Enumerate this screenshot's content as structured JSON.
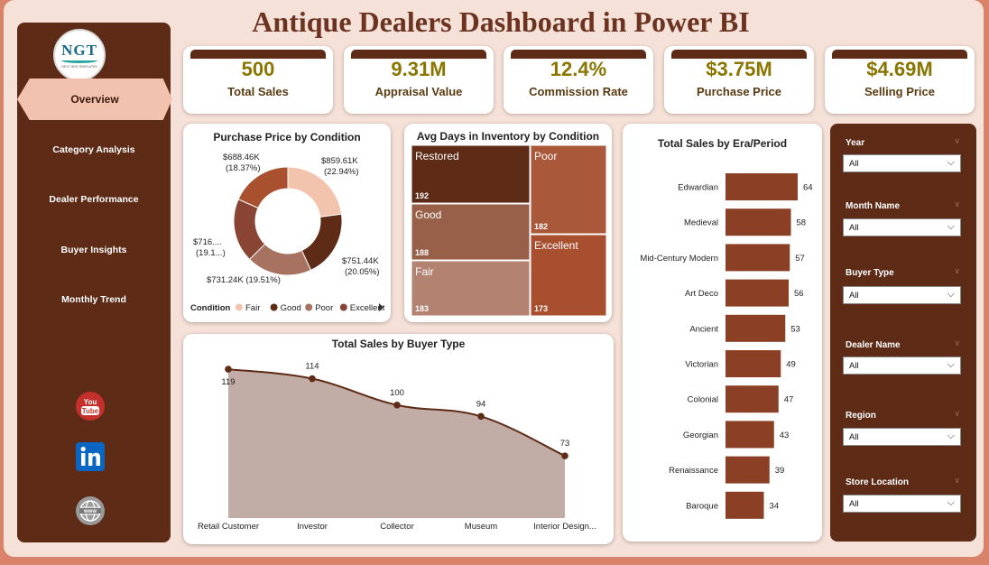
{
  "header": {
    "title": "Antique Dealers Dashboard in Power BI"
  },
  "logo": {
    "text": "NGT",
    "subtext": "NEXT GEN TEMPLATES"
  },
  "sidebar": {
    "active": "Overview",
    "items": [
      "Category Analysis",
      "Dealer Performance",
      "Buyer Insights",
      "Monthly Trend"
    ],
    "social": [
      {
        "name": "youtube-icon",
        "label": "You Tube",
        "color": "#c4302b"
      },
      {
        "name": "linkedin-icon",
        "label": "in",
        "color": "#0a66c2"
      },
      {
        "name": "web-icon",
        "label": "www",
        "color": "#8a8a8a"
      }
    ]
  },
  "kpis": [
    {
      "value": "500",
      "label": "Total Sales"
    },
    {
      "value": "9.31M",
      "label": "Appraisal Value"
    },
    {
      "value": "12.4%",
      "label": "Commission Rate"
    },
    {
      "value": "$3.75M",
      "label": "Purchase Price"
    },
    {
      "value": "$4.69M",
      "label": "Selling Price"
    }
  ],
  "charts": {
    "donut": {
      "title": "Purchase Price by Condition",
      "legend_title": "Condition",
      "slices": [
        {
          "label": "Fair",
          "value": 859.61,
          "color": "#f2c4ae",
          "text": "$859.61K",
          "pct": "(22.94%)"
        },
        {
          "label": "Good",
          "value": 751.44,
          "color": "#5e2b17",
          "text": "$751.44K",
          "pct": "(20.05%)"
        },
        {
          "label": "Poor",
          "value": 731.24,
          "color": "#a77260",
          "text": "$731.24K (19.51%)",
          "pct": ""
        },
        {
          "label": "Excellent",
          "value": 716,
          "color": "#8a4433",
          "text": "$716....",
          "pct": "(19.1...)"
        },
        {
          "label": "",
          "value": 688.46,
          "color": "#a9512e",
          "text": "$688.46K",
          "pct": "(18.37%)"
        }
      ]
    },
    "treemap": {
      "title": "Avg Days in Inventory by Condition",
      "cells": [
        {
          "label": "Restored",
          "value": "192",
          "color": "#5e2b17"
        },
        {
          "label": "Poor",
          "value": "182",
          "color": "#a9593a"
        },
        {
          "label": "Good",
          "value": "188",
          "color": "#996049"
        },
        {
          "label": "Excellent",
          "value": "173",
          "color": "#a84f30"
        },
        {
          "label": "Fair",
          "value": "183",
          "color": "#b38270"
        }
      ]
    },
    "era": {
      "title": "Total Sales by Era/Period"
    },
    "buyer": {
      "title": "Total Sales by Buyer Type"
    }
  },
  "chart_data": [
    {
      "type": "pie",
      "title": "Purchase Price by Condition",
      "categories": [
        "Fair",
        "Good",
        "Poor",
        "Excellent",
        ""
      ],
      "values": [
        859.61,
        751.44,
        731.24,
        716,
        688.46
      ],
      "unit": "$K"
    },
    {
      "type": "heatmap",
      "title": "Avg Days in Inventory by Condition",
      "categories": [
        "Restored",
        "Poor",
        "Good",
        "Excellent",
        "Fair"
      ],
      "values": [
        192,
        182,
        188,
        173,
        183
      ]
    },
    {
      "type": "bar",
      "title": "Total Sales by Era/Period",
      "categories": [
        "Edwardian",
        "Medieval",
        "Mid-Century Modern",
        "Art Deco",
        "Ancient",
        "Victorian",
        "Colonial",
        "Georgian",
        "Renaissance",
        "Baroque"
      ],
      "values": [
        64,
        58,
        57,
        56,
        53,
        49,
        47,
        43,
        39,
        34
      ]
    },
    {
      "type": "area",
      "title": "Total Sales by Buyer Type",
      "categories": [
        "Retail Customer",
        "Investor",
        "Collector",
        "Museum",
        "Interior Design..."
      ],
      "values": [
        119,
        114,
        100,
        94,
        73
      ]
    }
  ],
  "filters": [
    {
      "label": "Year",
      "value": "All"
    },
    {
      "label": "Month Name",
      "value": "All"
    },
    {
      "label": "Buyer Type",
      "value": "All"
    },
    {
      "label": "Dealer Name",
      "value": "All"
    },
    {
      "label": "Region",
      "value": "All"
    },
    {
      "label": "Store Location",
      "value": "All"
    }
  ],
  "colors": {
    "brand_dark": "#5e2b17",
    "bar": "#8b3f24",
    "accent": "#8a7500",
    "area": "#c1ada6"
  }
}
